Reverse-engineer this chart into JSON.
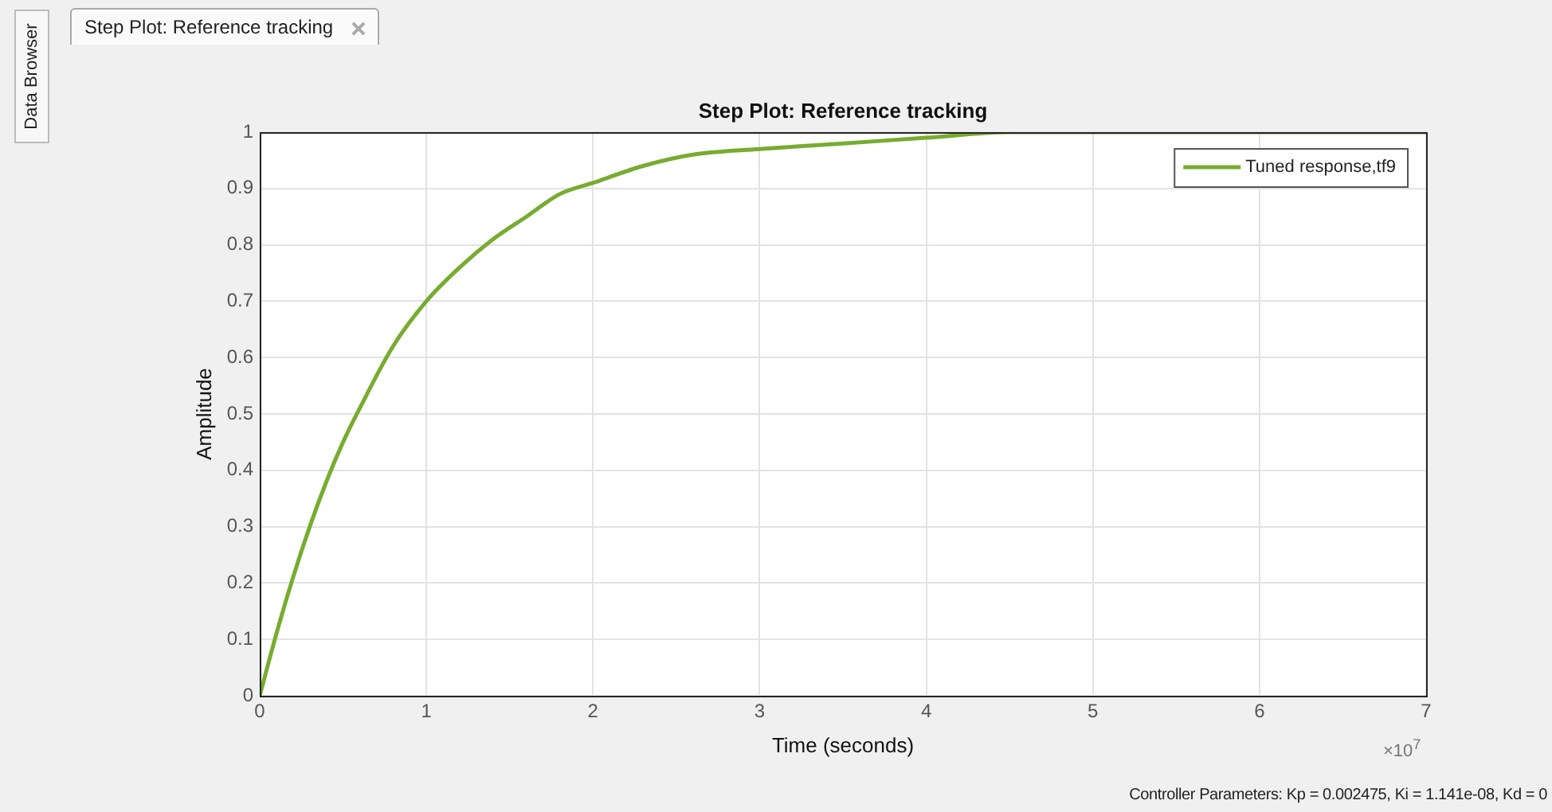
{
  "chart_data": {
    "type": "line",
    "title": "Step Plot: Reference tracking",
    "xlabel": "Time (seconds)",
    "ylabel": "Amplitude",
    "x": [
      0,
      0.1,
      0.2,
      0.3,
      0.4,
      0.5,
      0.6,
      0.8,
      1,
      1.2,
      1.4,
      1.6,
      1.8,
      2,
      2.3,
      2.6,
      3,
      3.5,
      4,
      4.5,
      5,
      5.5,
      6,
      7
    ],
    "series": [
      {
        "name": "Tuned response,tf9",
        "color": "#77ac30",
        "values": [
          0,
          0.11,
          0.21,
          0.3,
          0.38,
          0.45,
          0.51,
          0.62,
          0.7,
          0.76,
          0.81,
          0.85,
          0.89,
          0.91,
          0.94,
          0.96,
          0.97,
          0.98,
          0.99,
          1,
          1,
          1,
          1,
          1
        ]
      }
    ],
    "xlim": [
      0,
      7
    ],
    "xticks": [
      0,
      1,
      2,
      3,
      4,
      5,
      6,
      7
    ],
    "ylim": [
      0,
      1
    ],
    "yticks": [
      0,
      0.1,
      0.2,
      0.3,
      0.4,
      0.5,
      0.6,
      0.7,
      0.8,
      0.9,
      1
    ],
    "grid": true,
    "legend": "top right",
    "marker": "none",
    "line_style": "solid",
    "annotations": [
      "Step Plot: Reference tracking",
      "Data Browser",
      "×10$^{7}$",
      "Controller Parameters: Kp = 0.002475, Ki = 1.141e-08, Kd =  0"
    ]
  }
}
